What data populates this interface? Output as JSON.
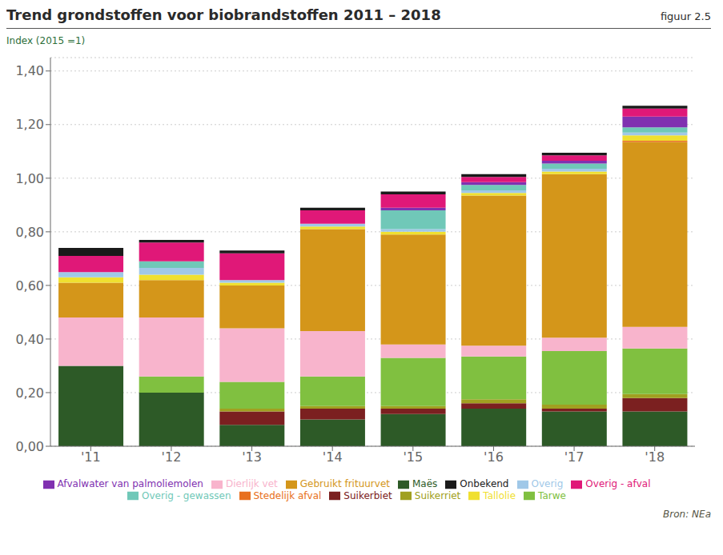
{
  "chart_data": {
    "type": "bar",
    "title": "Trend grondstoffen voor biobrandstoffen 2011 – 2018",
    "annotations": [
      "figuur 2.5",
      "Bron: NEa"
    ],
    "ylabel": "Index (2015 =1)",
    "stacked": true,
    "grid": true,
    "legend": "bottom",
    "categories": [
      "'11",
      "'12",
      "'13",
      "'14",
      "'15",
      "'16",
      "'17",
      "'18"
    ],
    "ylim": [
      0,
      1.45
    ],
    "yticks": [
      {
        "value": 0.0,
        "label": "0,00"
      },
      {
        "value": 0.2,
        "label": "0,20"
      },
      {
        "value": 0.4,
        "label": "0,40"
      },
      {
        "value": 0.6,
        "label": "0,60"
      },
      {
        "value": 0.8,
        "label": "0,80"
      },
      {
        "value": 1.0,
        "label": "1,00"
      },
      {
        "value": 1.2,
        "label": "1,20"
      },
      {
        "value": 1.4,
        "label": "1,40"
      }
    ],
    "series": [
      {
        "name": "Maës",
        "color": "#2d5a27",
        "values": [
          0.3,
          0.2,
          0.08,
          0.1,
          0.12,
          0.14,
          0.13,
          0.13
        ]
      },
      {
        "name": "Suikerbiet",
        "color": "#7b2020",
        "values": [
          0.0,
          0.0,
          0.05,
          0.04,
          0.02,
          0.02,
          0.01,
          0.05
        ]
      },
      {
        "name": "Suikerriet",
        "color": "#a0a020",
        "values": [
          0.0,
          0.0,
          0.01,
          0.01,
          0.01,
          0.015,
          0.015,
          0.015
        ]
      },
      {
        "name": "Tarwe",
        "color": "#80c040",
        "values": [
          0.0,
          0.06,
          0.1,
          0.11,
          0.18,
          0.16,
          0.2,
          0.17
        ]
      },
      {
        "name": "Dierlijk vet",
        "color": "#f8b4cc",
        "values": [
          0.18,
          0.22,
          0.2,
          0.17,
          0.05,
          0.04,
          0.05,
          0.08
        ]
      },
      {
        "name": "Gebruikt frituurvet",
        "color": "#d4961a",
        "values": [
          0.13,
          0.14,
          0.16,
          0.38,
          0.41,
          0.56,
          0.61,
          0.69
        ]
      },
      {
        "name": "Stedelijk afval",
        "color": "#e87020",
        "values": [
          0.0,
          0.0,
          0.0,
          0.0,
          0.0,
          0.0,
          0.0,
          0.005
        ]
      },
      {
        "name": "Tallolie",
        "color": "#f0e030",
        "values": [
          0.02,
          0.02,
          0.01,
          0.01,
          0.01,
          0.01,
          0.01,
          0.02
        ]
      },
      {
        "name": "Overig",
        "color": "#a0c8e8",
        "values": [
          0.02,
          0.025,
          0.01,
          0.01,
          0.01,
          0.01,
          0.01,
          0.01
        ]
      },
      {
        "name": "Overig - gewassen",
        "color": "#70c8b8",
        "values": [
          0.0,
          0.025,
          0.0,
          0.0,
          0.07,
          0.02,
          0.02,
          0.02
        ]
      },
      {
        "name": "Afvalwater van palmoliemolen",
        "color": "#8030b0",
        "values": [
          0.0,
          0.0,
          0.0,
          0.0,
          0.01,
          0.01,
          0.01,
          0.04
        ]
      },
      {
        "name": "Overig - afval",
        "color": "#e01878",
        "values": [
          0.06,
          0.07,
          0.1,
          0.05,
          0.05,
          0.02,
          0.02,
          0.03
        ]
      },
      {
        "name": "Onbekend",
        "color": "#1a1a1a",
        "values": [
          0.03,
          0.01,
          0.01,
          0.01,
          0.01,
          0.01,
          0.01,
          0.01
        ]
      }
    ]
  }
}
